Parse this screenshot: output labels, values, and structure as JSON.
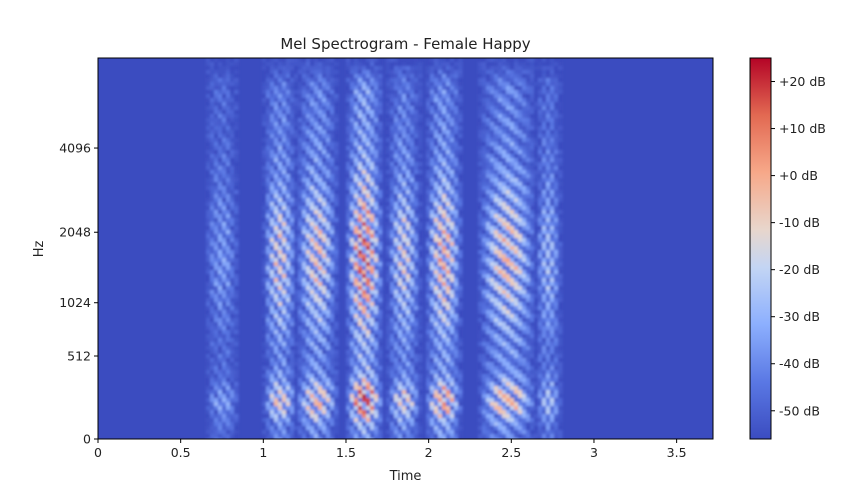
{
  "chart_data": {
    "type": "heatmap",
    "title": "Mel Spectrogram - Female Happy",
    "xlabel": "Time",
    "ylabel": "Hz",
    "x_scale": "linear",
    "y_scale": "mel",
    "xlim": [
      0,
      3.72
    ],
    "ylim": [
      0,
      8000
    ],
    "x_ticks": [
      0,
      0.5,
      1,
      1.5,
      2,
      2.5,
      3,
      3.5
    ],
    "x_tick_labels": [
      "0",
      "0.5",
      "1",
      "1.5",
      "2",
      "2.5",
      "3",
      "3.5"
    ],
    "y_ticks": [
      0,
      512,
      1024,
      2048,
      4096
    ],
    "y_tick_labels": [
      "0",
      "512",
      "1024",
      "2048",
      "4096"
    ],
    "colormap": "coolwarm",
    "background_color": "#3b4cc0",
    "colorbar": {
      "range_db": [
        -56,
        25
      ],
      "ticks": [
        20,
        10,
        0,
        -10,
        -20,
        -30,
        -40,
        -50
      ],
      "tick_labels": [
        "+20 dB",
        "+10 dB",
        "+0 dB",
        "-10 dB",
        "-20 dB",
        "-30 dB",
        "-40 dB",
        "-50 dB"
      ]
    },
    "voiced_segments": [
      {
        "start": 0.65,
        "end": 0.85,
        "peak_db": -30
      },
      {
        "start": 1.0,
        "end": 1.2,
        "peak_db": -5
      },
      {
        "start": 1.2,
        "end": 1.45,
        "peak_db": -2
      },
      {
        "start": 1.5,
        "end": 1.72,
        "peak_db": 22
      },
      {
        "start": 1.75,
        "end": 1.95,
        "peak_db": -8
      },
      {
        "start": 1.98,
        "end": 2.2,
        "peak_db": 5
      },
      {
        "start": 2.3,
        "end": 2.65,
        "peak_db": 0
      },
      {
        "start": 2.65,
        "end": 2.8,
        "peak_db": -20
      }
    ],
    "grid": false
  }
}
